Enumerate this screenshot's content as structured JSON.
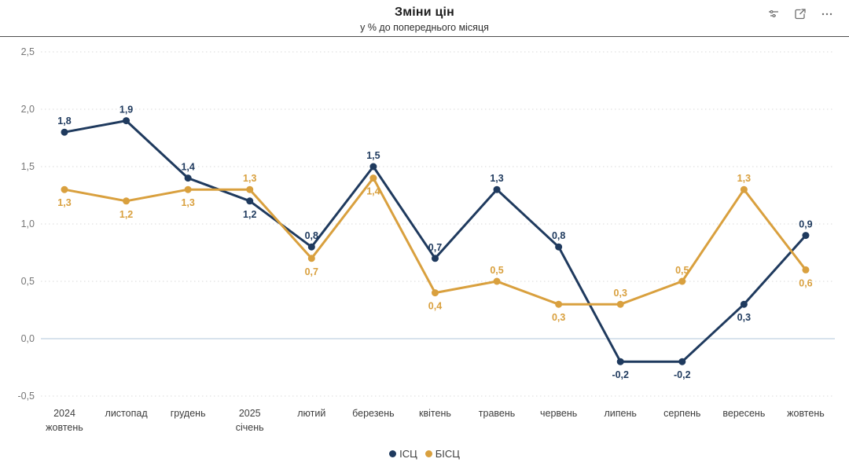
{
  "header": {
    "title": "Зміни цін",
    "subtitle": "у % до попереднього місяця",
    "icons": [
      "filter-icon",
      "focus-mode-icon",
      "more-options-icon"
    ]
  },
  "chart_data": {
    "type": "line",
    "title": "Зміни цін",
    "subtitle": "у % до попереднього місяця",
    "categories": [
      [
        "2024",
        "жовтень"
      ],
      [
        "листопад"
      ],
      [
        "грудень"
      ],
      [
        "2025",
        "січень"
      ],
      [
        "лютий"
      ],
      [
        "березень"
      ],
      [
        "квітень"
      ],
      [
        "травень"
      ],
      [
        "червень"
      ],
      [
        "липень"
      ],
      [
        "серпень"
      ],
      [
        "вересень"
      ],
      [
        "жовтень"
      ]
    ],
    "series": [
      {
        "name": "ІСЦ",
        "color": "#1f3a5e",
        "values": [
          1.8,
          1.9,
          1.4,
          1.2,
          0.8,
          1.5,
          0.7,
          1.3,
          0.8,
          -0.2,
          -0.2,
          0.3,
          0.9
        ],
        "labels": [
          "1,8",
          "1,9",
          "1,4",
          "1,2",
          "0,8",
          "1,5",
          "0,7",
          "1,3",
          "0,8",
          "-0,2",
          "-0,2",
          "0,3",
          "0,9"
        ],
        "label_positions": [
          "above",
          "above",
          "above",
          "below",
          "above",
          "above",
          "above",
          "above",
          "above",
          "below",
          "below",
          "below",
          "above"
        ]
      },
      {
        "name": "БІСЦ",
        "color": "#d9a03e",
        "values": [
          1.3,
          1.2,
          1.3,
          1.3,
          0.7,
          1.4,
          0.4,
          0.5,
          0.3,
          0.3,
          0.5,
          1.3,
          0.6
        ],
        "labels": [
          "1,3",
          "1,2",
          "1,3",
          "1,3",
          "0,7",
          "1,4",
          "0,4",
          "0,5",
          "0,3",
          "0,3",
          "0,5",
          "1,3",
          "0,6"
        ],
        "label_positions": [
          "below",
          "below",
          "below",
          "above",
          "below",
          "below",
          "below",
          "above",
          "below",
          "above",
          "above",
          "above",
          "below"
        ]
      }
    ],
    "yticks": [
      {
        "value": 2.5,
        "label": "2,5"
      },
      {
        "value": 2.0,
        "label": "2,0"
      },
      {
        "value": 1.5,
        "label": "1,5"
      },
      {
        "value": 1.0,
        "label": "1,0"
      },
      {
        "value": 0.5,
        "label": "0,5"
      },
      {
        "value": 0.0,
        "label": "0,0"
      },
      {
        "value": -0.5,
        "label": "-0,5"
      }
    ],
    "ylim": [
      -0.5,
      2.5
    ],
    "grid": "horizontal-dotted",
    "zero_line": true,
    "zero_line_color": "#d7e3ed",
    "gridline_color": "#d9d9d9",
    "axis_label_color": "#767676",
    "xlabel_color": "#3d3d3d",
    "legend_position": "bottom-center",
    "last_label_bold": true
  }
}
